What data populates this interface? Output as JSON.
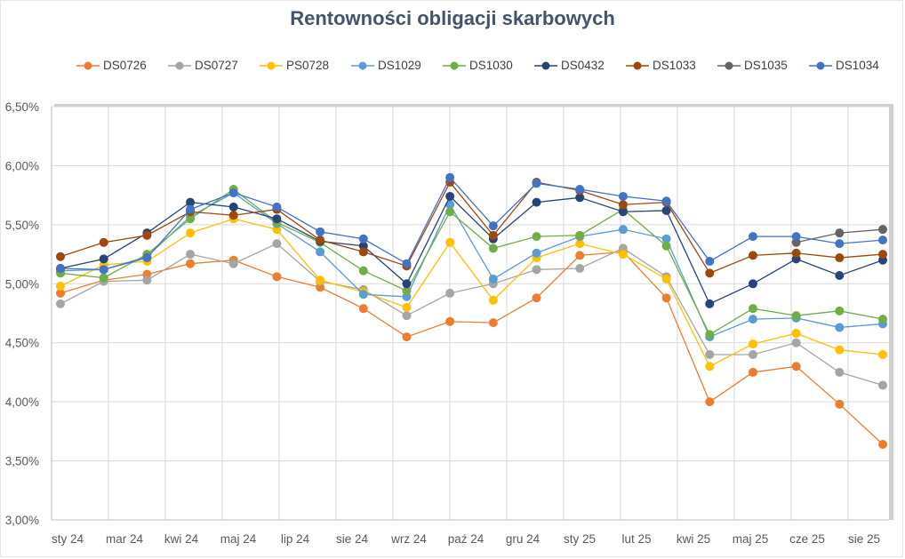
{
  "chart_data": {
    "type": "line",
    "title": "Rentowności obligacji skarbowych",
    "xlabel": "",
    "ylabel": "",
    "x_tick_labels": [
      "sty 24",
      "mar 24",
      "kwi 24",
      "maj 24",
      "lip 24",
      "sie 24",
      "wrz 24",
      "paź 24",
      "gru 24",
      "sty 25",
      "lut 25",
      "kwi 25",
      "maj 25",
      "cze 25",
      "sie 25"
    ],
    "y_tick_labels": [
      "3,00%",
      "3,50%",
      "4,00%",
      "4,50%",
      "5,00%",
      "5,50%",
      "6,00%",
      "6,50%"
    ],
    "ylim": [
      3.0,
      6.5
    ],
    "y_unit": "%",
    "grid": true,
    "legend_position": "top",
    "markers": true,
    "series": [
      {
        "name": "DS0726",
        "color": "#ED7D31",
        "values": [
          4.92,
          5.03,
          5.08,
          5.17,
          5.2,
          5.06,
          4.97,
          4.79,
          4.55,
          4.68,
          4.67,
          4.88,
          5.24,
          5.27,
          4.88,
          4.0,
          4.25,
          4.3,
          3.98,
          3.64
        ]
      },
      {
        "name": "DS0727",
        "color": "#A5A5A5",
        "values": [
          4.83,
          5.02,
          5.03,
          5.25,
          5.17,
          5.34,
          5.02,
          4.95,
          4.73,
          4.92,
          5.0,
          5.12,
          5.13,
          5.3,
          5.06,
          4.4,
          4.4,
          4.5,
          4.25,
          4.14
        ]
      },
      {
        "name": "PS0728",
        "color": "#FFC000",
        "values": [
          4.98,
          5.16,
          5.19,
          5.43,
          5.55,
          5.46,
          5.03,
          4.93,
          4.8,
          5.35,
          4.86,
          5.22,
          5.34,
          5.25,
          5.04,
          4.3,
          4.49,
          4.58,
          4.44,
          4.4
        ]
      },
      {
        "name": "DS1029",
        "color": "#5B9BD5",
        "values": [
          5.11,
          5.12,
          5.23,
          5.57,
          5.77,
          5.51,
          5.27,
          4.91,
          4.89,
          5.67,
          5.04,
          5.26,
          5.4,
          5.46,
          5.38,
          4.55,
          4.7,
          4.71,
          4.63,
          4.66
        ]
      },
      {
        "name": "DS1030",
        "color": "#70AD47",
        "values": [
          5.09,
          5.05,
          5.25,
          5.55,
          5.8,
          5.52,
          5.35,
          5.11,
          4.94,
          5.61,
          5.3,
          5.4,
          5.41,
          5.63,
          5.32,
          4.57,
          4.79,
          4.73,
          4.77,
          4.7
        ]
      },
      {
        "name": "DS0432",
        "color": "#264478",
        "values": [
          5.13,
          5.21,
          5.43,
          5.69,
          5.65,
          5.55,
          5.36,
          5.32,
          5.0,
          5.74,
          5.38,
          5.69,
          5.73,
          5.61,
          5.62,
          4.83,
          5.0,
          5.21,
          5.07,
          5.2
        ]
      },
      {
        "name": "DS1033",
        "color": "#9E480E",
        "values": [
          5.23,
          5.35,
          5.41,
          5.61,
          5.58,
          5.63,
          5.37,
          5.27,
          5.15,
          5.86,
          5.41,
          5.86,
          5.79,
          5.67,
          5.69,
          5.09,
          5.24,
          5.26,
          5.22,
          5.25
        ]
      },
      {
        "name": "DS1035",
        "color": "#636363",
        "values": [
          null,
          null,
          null,
          null,
          null,
          null,
          null,
          null,
          null,
          null,
          null,
          null,
          null,
          null,
          null,
          null,
          null,
          5.35,
          5.43,
          5.46
        ]
      },
      {
        "name": "DS1034",
        "color": "#4472C4",
        "values": [
          5.13,
          5.12,
          5.22,
          5.63,
          5.77,
          5.65,
          5.44,
          5.38,
          5.17,
          5.9,
          5.49,
          5.85,
          5.8,
          5.74,
          5.7,
          5.19,
          5.4,
          5.4,
          5.34,
          5.37
        ]
      }
    ]
  }
}
